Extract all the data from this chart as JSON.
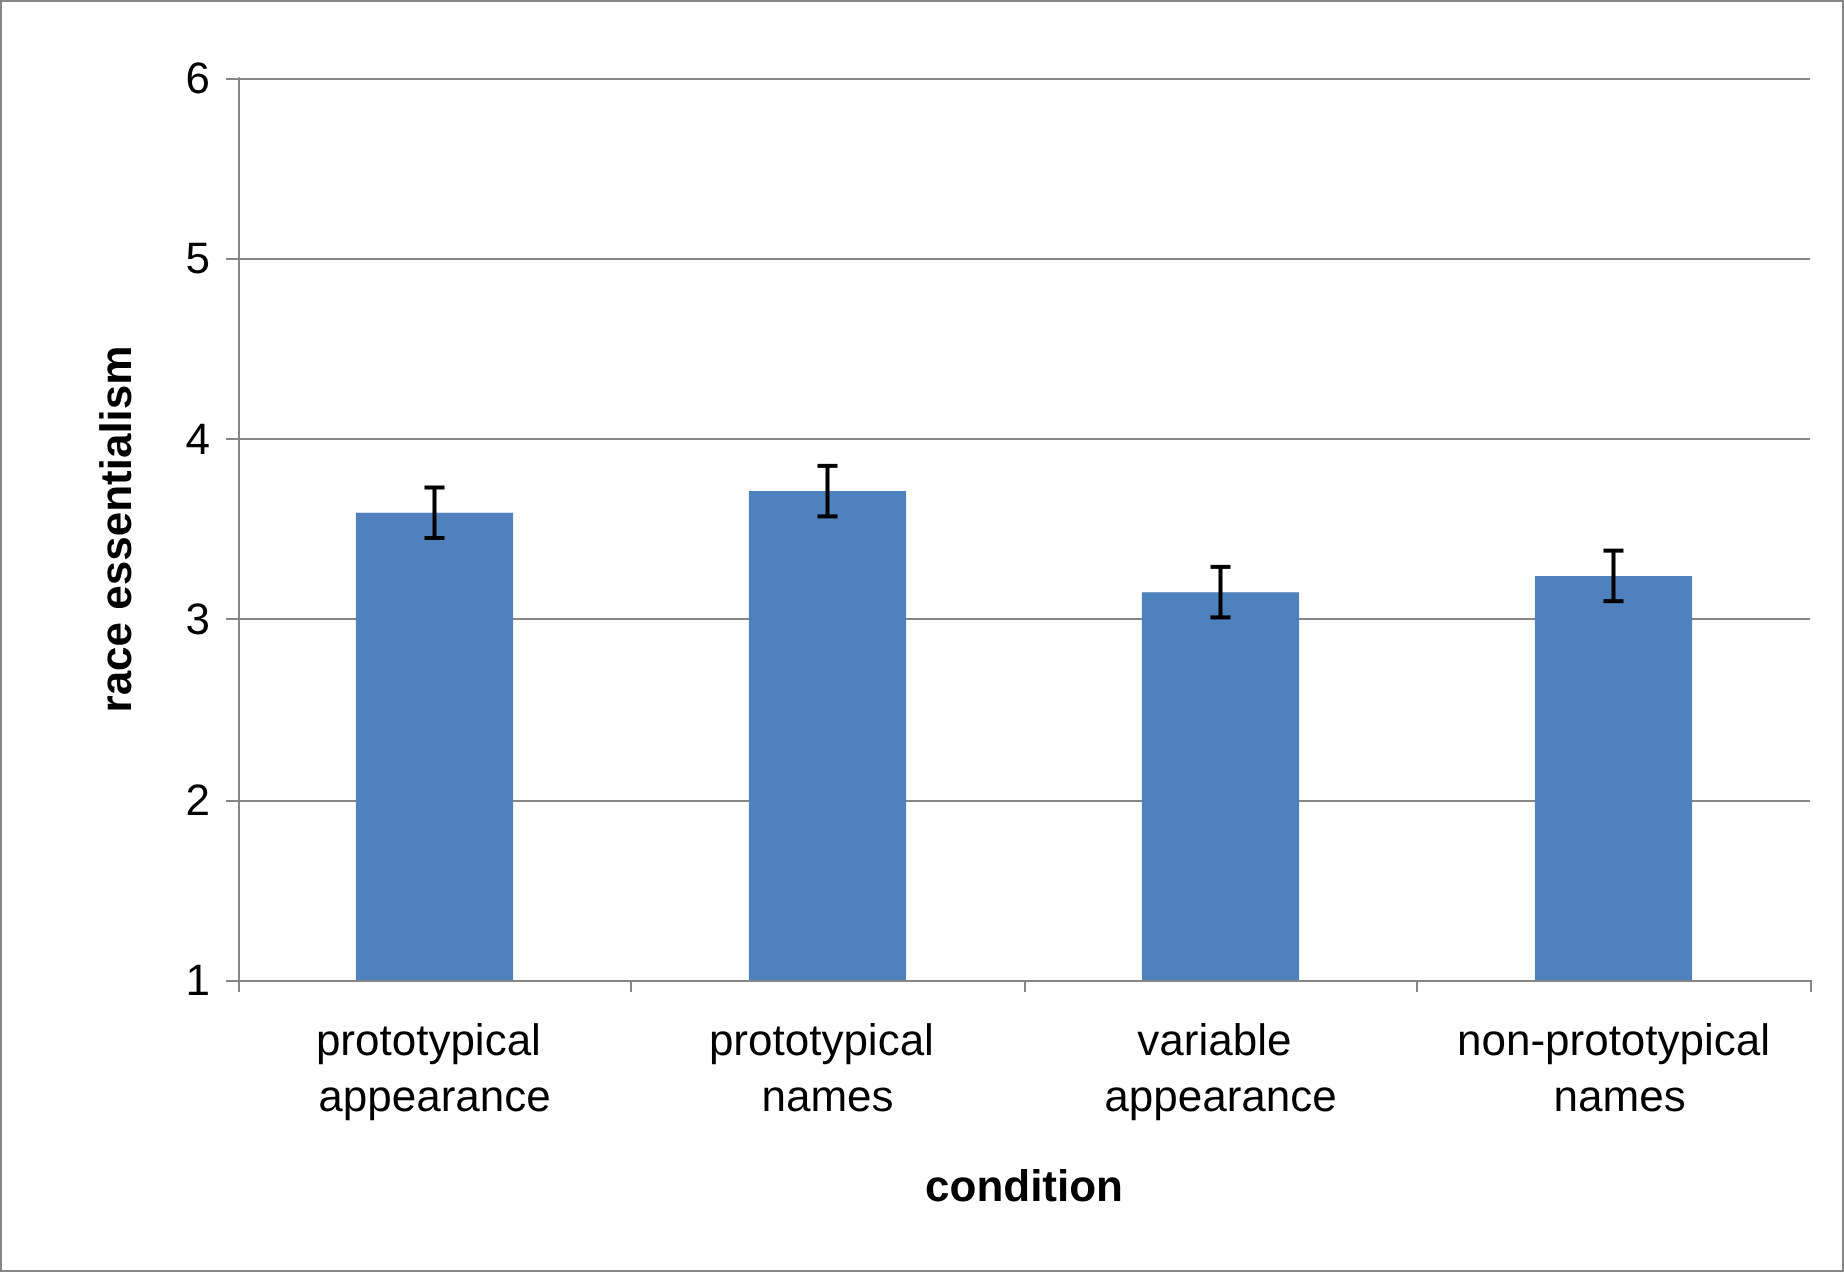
{
  "chart_data": {
    "type": "bar",
    "xlabel": "condition",
    "ylabel": "race essentialism",
    "categories": [
      "prototypical appearance",
      "prototypical names",
      "variable appearance",
      "non-prototypical names"
    ],
    "values": [
      3.59,
      3.71,
      3.15,
      3.24
    ],
    "errors": [
      0.14,
      0.14,
      0.14,
      0.14
    ],
    "color": "#4f81bd",
    "ylim": [
      1,
      6
    ],
    "yticks": [
      1,
      2,
      3,
      4,
      5,
      6
    ],
    "grid": "y"
  }
}
